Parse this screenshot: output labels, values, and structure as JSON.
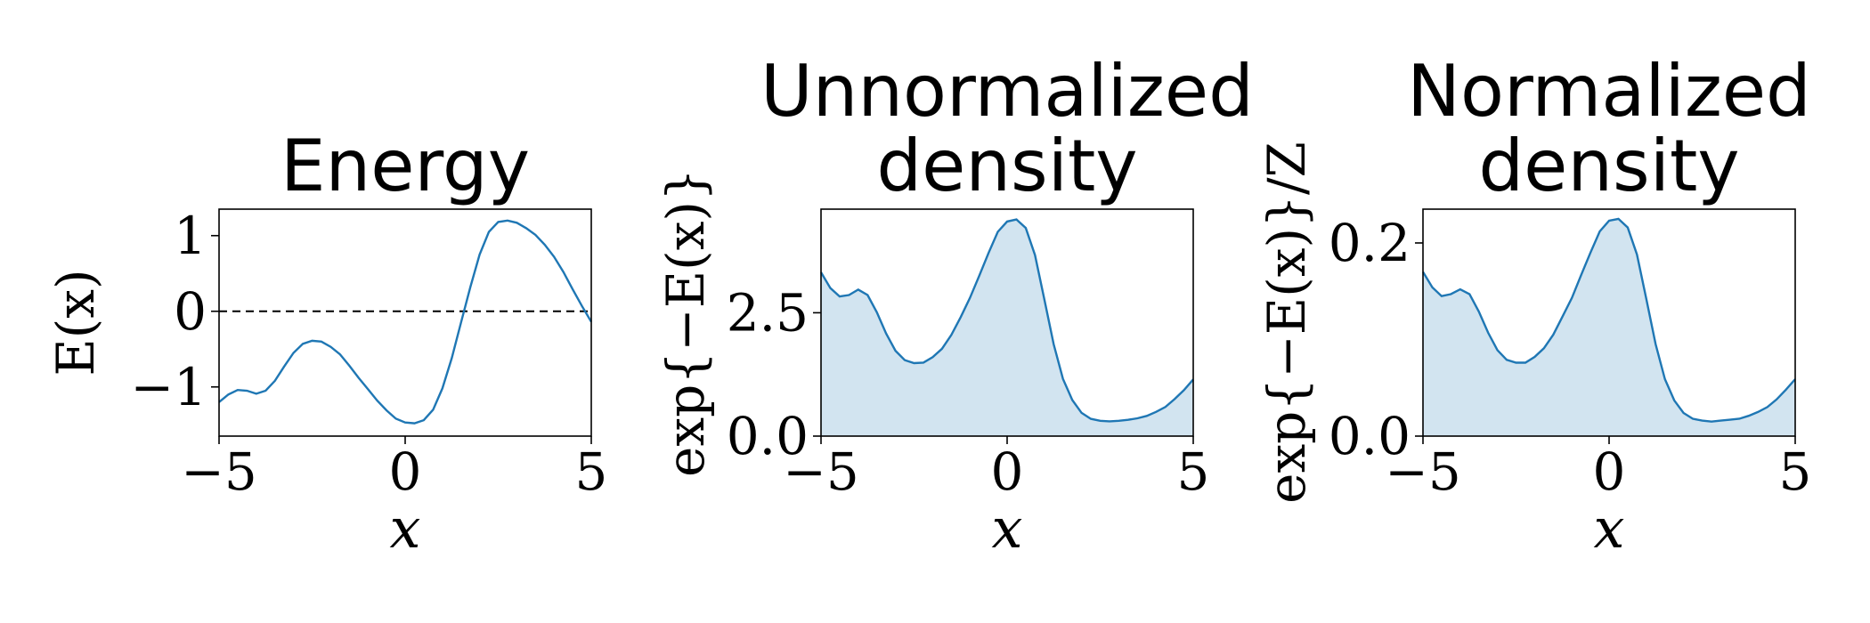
{
  "chart_data": [
    {
      "type": "line",
      "title_lines": [
        "Energy"
      ],
      "xlabel": "x",
      "ylabel": "E(x)",
      "xlim": [
        -5,
        5
      ],
      "ylim": [
        -1.65,
        1.35
      ],
      "xticks": [
        {
          "v": -5,
          "label": "−5"
        },
        {
          "v": 0,
          "label": "0"
        },
        {
          "v": 5,
          "label": "5"
        }
      ],
      "yticks": [
        {
          "v": -1,
          "label": "−1"
        },
        {
          "v": 0,
          "label": "0"
        },
        {
          "v": 1,
          "label": "1"
        }
      ],
      "reference_line": {
        "y": 0,
        "style": "dashed"
      },
      "fill": false,
      "x": [
        -5,
        -4.75,
        -4.5,
        -4.25,
        -4,
        -3.75,
        -3.5,
        -3.25,
        -3,
        -2.75,
        -2.5,
        -2.25,
        -2,
        -1.75,
        -1.5,
        -1.25,
        -1,
        -0.75,
        -0.5,
        -0.25,
        0,
        0.25,
        0.5,
        0.75,
        1,
        1.25,
        1.5,
        1.75,
        2,
        2.25,
        2.5,
        2.75,
        3,
        3.25,
        3.5,
        3.75,
        4,
        4.25,
        4.5,
        4.75,
        5
      ],
      "y": [
        -1.2,
        -1.1,
        -1.04,
        -1.05,
        -1.09,
        -1.05,
        -0.92,
        -0.73,
        -0.55,
        -0.43,
        -0.39,
        -0.4,
        -0.47,
        -0.57,
        -0.72,
        -0.88,
        -1.03,
        -1.18,
        -1.31,
        -1.42,
        -1.47,
        -1.48,
        -1.44,
        -1.3,
        -1.02,
        -0.62,
        -0.15,
        0.32,
        0.75,
        1.05,
        1.18,
        1.2,
        1.17,
        1.1,
        1.01,
        0.88,
        0.72,
        0.52,
        0.29,
        0.07,
        -0.14
      ]
    },
    {
      "type": "area",
      "title_lines": [
        "Unnormalized",
        "density"
      ],
      "xlabel": "x",
      "ylabel": "exp{−E(x)}",
      "xlim": [
        -5,
        5
      ],
      "ylim": [
        0,
        4.6
      ],
      "xticks": [
        {
          "v": -5,
          "label": "−5"
        },
        {
          "v": 0,
          "label": "0"
        },
        {
          "v": 5,
          "label": "5"
        }
      ],
      "yticks": [
        {
          "v": 0,
          "label": "0.0"
        },
        {
          "v": 2.5,
          "label": "2.5"
        }
      ],
      "fill": true,
      "x": [
        -5,
        -4.75,
        -4.5,
        -4.25,
        -4,
        -3.75,
        -3.5,
        -3.25,
        -3,
        -2.75,
        -2.5,
        -2.25,
        -2,
        -1.75,
        -1.5,
        -1.25,
        -1,
        -0.75,
        -0.5,
        -0.25,
        0,
        0.25,
        0.5,
        0.75,
        1,
        1.25,
        1.5,
        1.75,
        2,
        2.25,
        2.5,
        2.75,
        3,
        3.25,
        3.5,
        3.75,
        4,
        4.25,
        4.5,
        4.75,
        5
      ],
      "y": [
        3.32,
        3.0,
        2.83,
        2.86,
        2.97,
        2.86,
        2.51,
        2.08,
        1.73,
        1.54,
        1.48,
        1.49,
        1.6,
        1.77,
        2.05,
        2.41,
        2.8,
        3.25,
        3.71,
        4.14,
        4.35,
        4.39,
        4.22,
        3.67,
        2.77,
        1.86,
        1.16,
        0.73,
        0.47,
        0.35,
        0.31,
        0.3,
        0.31,
        0.33,
        0.36,
        0.41,
        0.49,
        0.59,
        0.75,
        0.93,
        1.15
      ]
    },
    {
      "type": "area",
      "title_lines": [
        "Normalized",
        "density"
      ],
      "xlabel": "x",
      "ylabel": "exp{−E(x)}/Z",
      "xlim": [
        -5,
        5
      ],
      "ylim": [
        0,
        0.235
      ],
      "xticks": [
        {
          "v": -5,
          "label": "−5"
        },
        {
          "v": 0,
          "label": "0"
        },
        {
          "v": 5,
          "label": "5"
        }
      ],
      "yticks": [
        {
          "v": 0,
          "label": "0.0"
        },
        {
          "v": 0.2,
          "label": "0.2"
        }
      ],
      "fill": true,
      "x": [
        -5,
        -4.75,
        -4.5,
        -4.25,
        -4,
        -3.75,
        -3.5,
        -3.25,
        -3,
        -2.75,
        -2.5,
        -2.25,
        -2,
        -1.75,
        -1.5,
        -1.25,
        -1,
        -0.75,
        -0.5,
        -0.25,
        0,
        0.25,
        0.5,
        0.75,
        1,
        1.25,
        1.5,
        1.75,
        2,
        2.25,
        2.5,
        2.75,
        3,
        3.25,
        3.5,
        3.75,
        4,
        4.25,
        4.5,
        4.75,
        5
      ],
      "y": [
        0.17,
        0.154,
        0.145,
        0.147,
        0.152,
        0.147,
        0.129,
        0.107,
        0.089,
        0.079,
        0.076,
        0.076,
        0.082,
        0.091,
        0.105,
        0.124,
        0.143,
        0.167,
        0.19,
        0.212,
        0.223,
        0.225,
        0.216,
        0.188,
        0.142,
        0.095,
        0.059,
        0.037,
        0.024,
        0.018,
        0.016,
        0.015,
        0.016,
        0.017,
        0.018,
        0.021,
        0.025,
        0.03,
        0.038,
        0.048,
        0.059
      ]
    }
  ]
}
